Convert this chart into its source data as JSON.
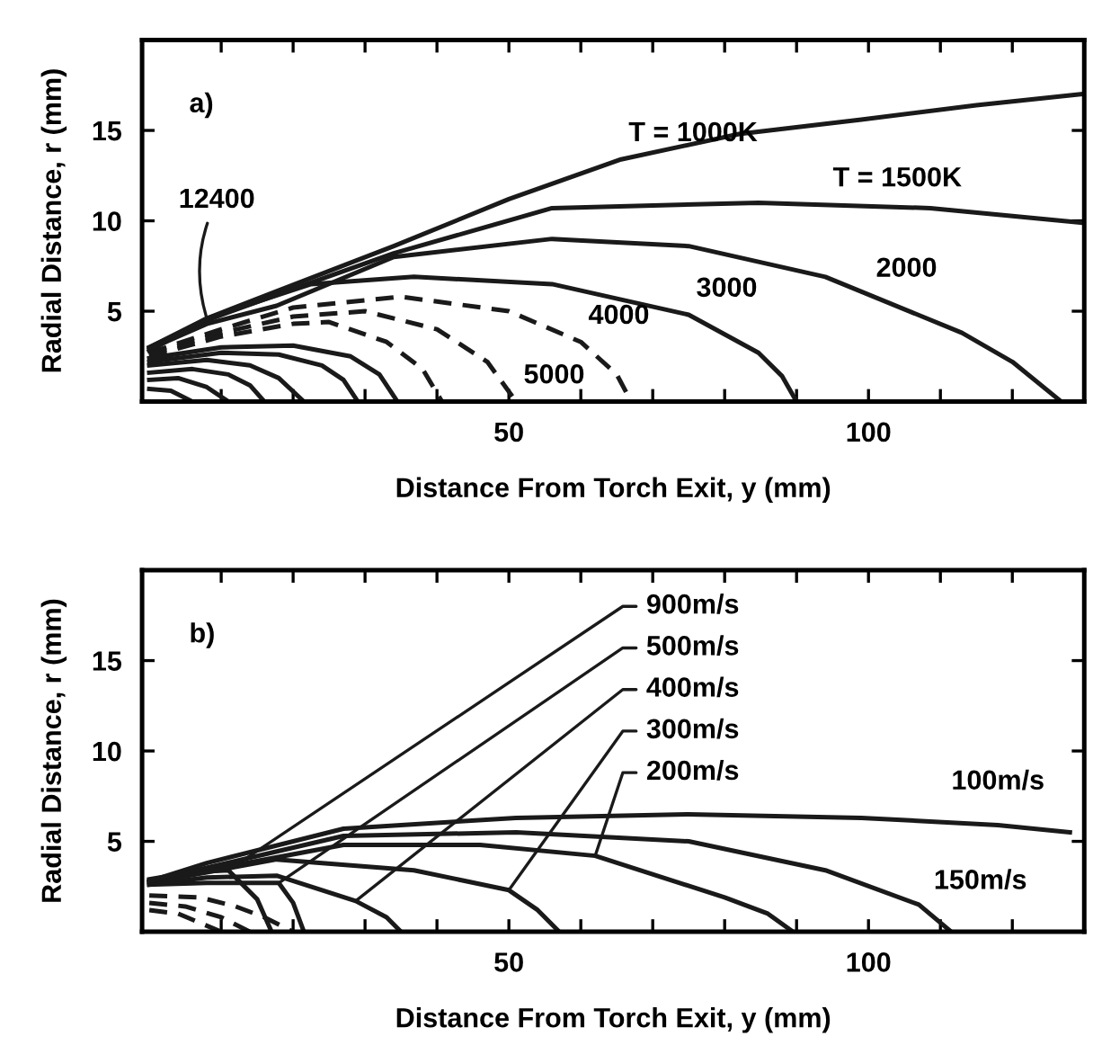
{
  "chart_data": [
    {
      "type": "line",
      "xlabel": "Distance From Torch Exit, y (mm)",
      "ylabel": "Radial Distance, r (mm)",
      "xlim": [
        -1,
        130
      ],
      "ylim": [
        0,
        20
      ],
      "xticks": [
        {
          "value": 10,
          "label": null
        },
        {
          "value": 20,
          "label": null
        },
        {
          "value": 30,
          "label": null
        },
        {
          "value": 40,
          "label": null
        },
        50,
        {
          "value": 60,
          "label": null
        },
        {
          "value": 70,
          "label": null
        },
        {
          "value": 80,
          "label": null
        },
        {
          "value": 90,
          "label": null
        },
        100,
        {
          "value": 110,
          "label": null
        },
        {
          "value": 120,
          "label": null
        }
      ],
      "yticks": [
        5,
        10,
        15
      ],
      "grid": false,
      "legend": false,
      "line_style": "solid",
      "series": [
        {
          "color": "#1a1a1a",
          "x": [
            0,
            8,
            17.7,
            34,
            50,
            65.6,
            82,
            99,
            115,
            129.5
          ],
          "values": [
            3.0,
            4.6,
            6.1,
            8.6,
            11.2,
            13.4,
            14.8,
            15.6,
            16.4,
            17.0
          ]
        },
        {
          "color": "#1a1a1a",
          "x": [
            0,
            8,
            17.7,
            34,
            56,
            84.7,
            108.6,
            129.5
          ],
          "values": [
            3.0,
            4.5,
            5.9,
            8.2,
            10.7,
            11.0,
            10.7,
            9.9
          ]
        },
        {
          "color": "#1a1a1a",
          "x": [
            0,
            8,
            17.7,
            34,
            56,
            75,
            94,
            113,
            120,
            126.8
          ],
          "values": [
            2.9,
            4.3,
            5.3,
            8.0,
            9.0,
            8.6,
            6.9,
            3.8,
            2.2,
            0
          ]
        },
        {
          "color": "#1a1a1a",
          "x": [
            0,
            8,
            22.5,
            36.8,
            56,
            75,
            84.7,
            88,
            90
          ],
          "values": [
            2.8,
            4.6,
            6.5,
            6.9,
            6.5,
            4.8,
            2.7,
            1.4,
            0
          ]
        },
        {
          "color": "#1a1a1a",
          "line_style": "dashed",
          "x": [
            0,
            10,
            20,
            35,
            50,
            60,
            65,
            67
          ],
          "values": [
            2.7,
            4.0,
            5.2,
            5.8,
            5.0,
            3.3,
            1.5,
            0
          ]
        },
        {
          "color": "#1a1a1a",
          "line_style": "dashed",
          "x": [
            0,
            10,
            20,
            30,
            40,
            47,
            51
          ],
          "values": [
            2.6,
            3.8,
            4.7,
            5.0,
            4.0,
            2.2,
            0
          ]
        },
        {
          "color": "#1a1a1a",
          "line_style": "dashed",
          "x": [
            0,
            10,
            20,
            25,
            33,
            38,
            40.7
          ],
          "values": [
            2.5,
            3.6,
            4.3,
            4.4,
            3.3,
            1.8,
            0
          ]
        },
        {
          "color": "#1a1a1a",
          "x": [
            0,
            10,
            20,
            28,
            32,
            34.5
          ],
          "values": [
            2.4,
            3.0,
            3.1,
            2.5,
            1.5,
            0
          ]
        },
        {
          "color": "#1a1a1a",
          "x": [
            0,
            10,
            18,
            24,
            27,
            29
          ],
          "values": [
            2.2,
            2.7,
            2.6,
            2.0,
            1.2,
            0
          ]
        },
        {
          "color": "#1a1a1a",
          "x": [
            0,
            8,
            14,
            18,
            21.5
          ],
          "values": [
            2.0,
            2.3,
            2.0,
            1.3,
            0
          ]
        },
        {
          "color": "#1a1a1a",
          "x": [
            0,
            6,
            11,
            14,
            16
          ],
          "values": [
            1.6,
            1.8,
            1.5,
            0.9,
            0
          ]
        },
        {
          "color": "#1a1a1a",
          "x": [
            0,
            4,
            8,
            11
          ],
          "values": [
            1.2,
            1.3,
            0.8,
            0
          ]
        },
        {
          "color": "#1a1a1a",
          "x": [
            0,
            3,
            6
          ],
          "values": [
            0.7,
            0.6,
            0
          ]
        }
      ],
      "annotations": [
        "a)",
        {
          "text": "T = 1000K",
          "x": 65.6,
          "y": 13.4
        },
        {
          "text": "T = 1500K",
          "x": 94,
          "y": 10.9
        },
        {
          "text": "2000",
          "x": 100,
          "y": 5.9
        },
        {
          "text": "3000",
          "x": 75,
          "y": 4.8
        },
        {
          "text": "4000",
          "x": 60,
          "y": 3.3
        },
        {
          "text": "5000",
          "x": 51,
          "y": 0
        },
        {
          "text": "12400",
          "x": 8,
          "y": 4.6
        }
      ]
    },
    {
      "type": "line",
      "xlabel": "Distance From Torch Exit, y (mm)",
      "ylabel": "Radial Distance, r (mm)",
      "xlim": [
        -1,
        130
      ],
      "ylim": [
        0,
        20
      ],
      "xticks": [
        {
          "value": 10,
          "label": null
        },
        {
          "value": 20,
          "label": null
        },
        {
          "value": 30,
          "label": null
        },
        {
          "value": 40,
          "label": null
        },
        50,
        {
          "value": 60,
          "label": null
        },
        {
          "value": 70,
          "label": null
        },
        {
          "value": 80,
          "label": null
        },
        {
          "value": 90,
          "label": null
        },
        100,
        {
          "value": 110,
          "label": null
        },
        {
          "value": 120,
          "label": null
        }
      ],
      "yticks": [
        5,
        10,
        15
      ],
      "grid": false,
      "legend": false,
      "line_style": "solid",
      "series": [
        {
          "name": "900m/s",
          "color": "#1a1a1a",
          "x": [
            0,
            6,
            11,
            15,
            17
          ],
          "values": [
            2.9,
            3.3,
            3.4,
            1.8,
            0
          ]
        },
        {
          "name": "500m/s",
          "color": "#1a1a1a",
          "x": [
            0,
            8,
            18,
            20,
            21.5
          ],
          "values": [
            2.6,
            2.7,
            2.7,
            1.6,
            0
          ]
        },
        {
          "name": "400m/s",
          "color": "#1a1a1a",
          "x": [
            0,
            8,
            17.7,
            28.7,
            33,
            35
          ],
          "values": [
            2.6,
            3.0,
            3.1,
            1.7,
            0.8,
            0
          ]
        },
        {
          "name": "300m/s",
          "color": "#1a1a1a",
          "x": [
            0,
            17.7,
            36.8,
            50,
            54,
            57
          ],
          "values": [
            2.7,
            4.0,
            3.4,
            2.3,
            1.2,
            0
          ]
        },
        {
          "name": "200m/s",
          "color": "#1a1a1a",
          "x": [
            0,
            27,
            46,
            62,
            80,
            86,
            89.5
          ],
          "values": [
            2.8,
            4.8,
            4.8,
            4.2,
            1.9,
            1.0,
            0
          ]
        },
        {
          "name": "150m/s",
          "color": "#1a1a1a",
          "x": [
            0,
            27,
            51,
            75,
            94,
            107,
            111.5
          ],
          "values": [
            2.8,
            5.3,
            5.5,
            5.0,
            3.4,
            1.5,
            0
          ]
        },
        {
          "name": "100m/s",
          "color": "#1a1a1a",
          "x": [
            0,
            8,
            27,
            51,
            75,
            99,
            118,
            128
          ],
          "values": [
            2.8,
            3.8,
            5.7,
            6.3,
            6.5,
            6.3,
            5.9,
            5.5
          ]
        },
        {
          "color": "#1a1a1a",
          "line_style": "dashed",
          "x": [
            0,
            7,
            12,
            16,
            20
          ],
          "values": [
            2.0,
            1.9,
            1.4,
            0.8,
            0
          ]
        },
        {
          "color": "#1a1a1a",
          "line_style": "dashed",
          "x": [
            0,
            5,
            10,
            14
          ],
          "values": [
            1.6,
            1.4,
            0.8,
            0
          ]
        },
        {
          "color": "#1a1a1a",
          "line_style": "dashed",
          "x": [
            0,
            4,
            7,
            10
          ],
          "values": [
            1.2,
            1.0,
            0.5,
            0
          ]
        }
      ],
      "annotations": [
        "b)"
      ]
    }
  ]
}
